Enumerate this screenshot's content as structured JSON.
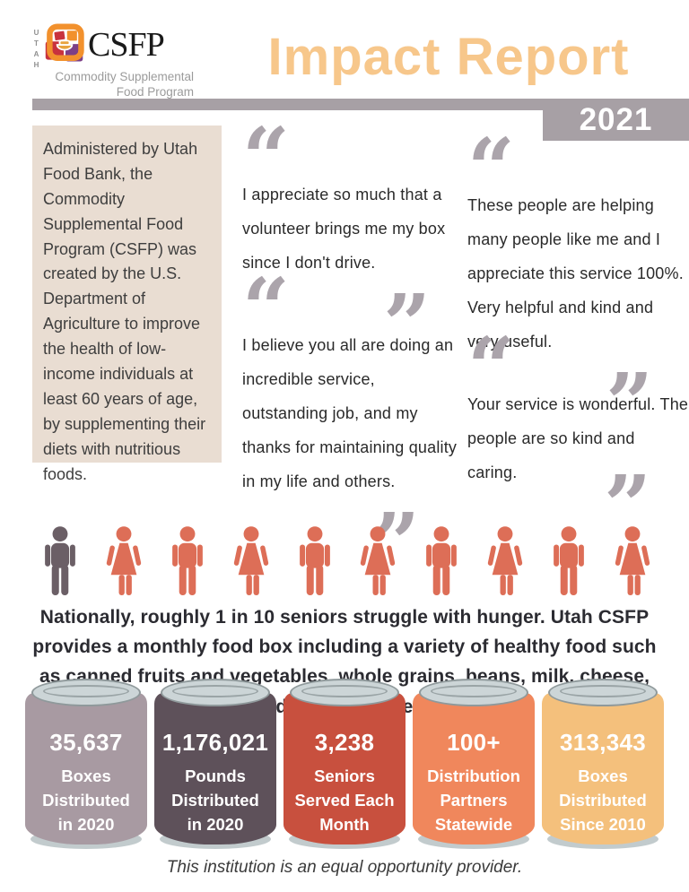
{
  "header": {
    "logo": {
      "state": "UTAH",
      "acronym": "CSFP",
      "subtitle_line1": "Commodity Supplemental",
      "subtitle_line2": "Food Program"
    },
    "title": "Impact Report",
    "year": "2021"
  },
  "colors": {
    "title_accent": "#f7c78b",
    "header_gray": "#a7a0a5",
    "intro_beige": "#e9ddd2",
    "quote_mark_gray": "#aba4ab",
    "figure_highlight": "#6b5f66",
    "figure_default": "#dd6e57"
  },
  "intro": {
    "text": "Administered by Utah Food Bank, the Commodity Supplemental Food Program (CSFP) was created by the U.S. Department of Agriculture to improve the health of low-income individuals at least 60 years of age, by supplementing their diets with nutritious foods."
  },
  "quotes": [
    {
      "text": "I appreciate so much that a volunteer brings me my box since I don't drive."
    },
    {
      "text": "These people are helping many people like me and I appreciate this service 100%. Very helpful and kind and very useful."
    },
    {
      "text": "I believe you all are doing an incredible service, outstanding job, and my thanks for maintaining quality in my life and others."
    },
    {
      "text": "Your service is wonderful. The people are so kind and caring."
    }
  ],
  "population": {
    "figures": [
      {
        "type": "man",
        "highlight": true
      },
      {
        "type": "woman",
        "highlight": false
      },
      {
        "type": "man",
        "highlight": false
      },
      {
        "type": "woman",
        "highlight": false
      },
      {
        "type": "man",
        "highlight": false
      },
      {
        "type": "woman",
        "highlight": false
      },
      {
        "type": "man",
        "highlight": false
      },
      {
        "type": "woman",
        "highlight": false
      },
      {
        "type": "man",
        "highlight": false
      },
      {
        "type": "woman",
        "highlight": false
      }
    ],
    "colors": {
      "highlight": "#6b5f66",
      "default": "#dd6e57"
    }
  },
  "statement": "Nationally, roughly 1 in 10 seniors struggle with hunger. Utah CSFP provides a monthly food box including a variety of healthy food such as canned fruits and vegetables, whole grains, beans, milk, cheese, and packaged meat.",
  "stats": [
    {
      "number": "35,637",
      "lines": [
        "Boxes",
        "Distributed",
        "in 2020"
      ],
      "color": "#a89aa2"
    },
    {
      "number": "1,176,021",
      "lines": [
        "Pounds",
        "Distributed",
        "in 2020"
      ],
      "color": "#5e515a"
    },
    {
      "number": "3,238",
      "lines": [
        "Seniors",
        "Served Each",
        "Month"
      ],
      "color": "#c8503e"
    },
    {
      "number": "100+",
      "lines": [
        "Distribution",
        "Partners",
        "Statewide"
      ],
      "color": "#f0875c"
    },
    {
      "number": "313,343",
      "lines": [
        "Boxes",
        "Distributed",
        "Since 2010"
      ],
      "color": "#f4c07c"
    }
  ],
  "footer": "This institution is an equal opportunity provider."
}
